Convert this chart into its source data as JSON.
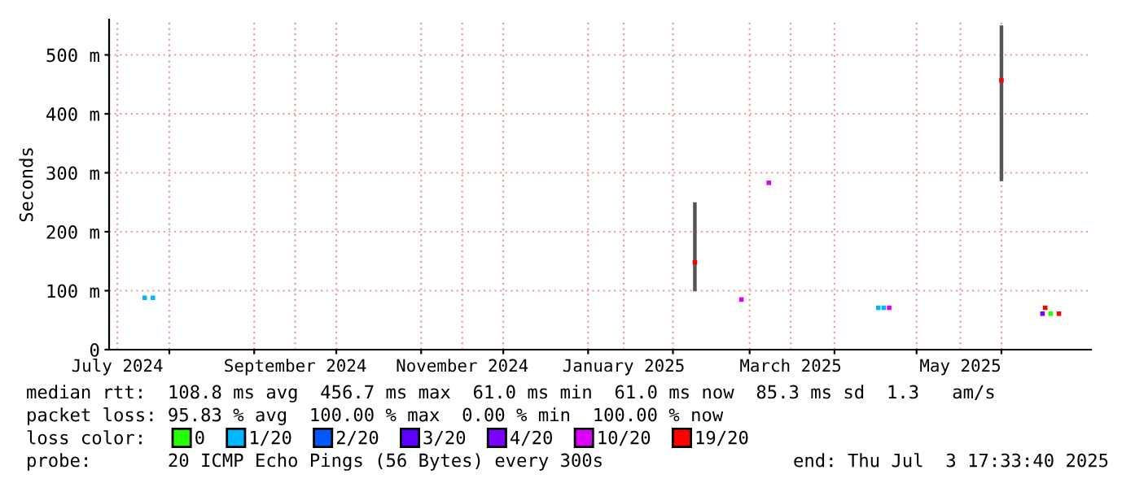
{
  "chart_data": {
    "type": "scatter",
    "ylabel": "Seconds",
    "xlim": [
      "2024-07-10",
      "2025-07-03T17:33"
    ],
    "xticks": [
      {
        "value": "2024-08-01",
        "label": null
      },
      {
        "value": "2024-09-01",
        "label": null
      },
      {
        "value": "2024-10-01",
        "label": null
      },
      {
        "value": "2024-11-01",
        "label": null
      },
      {
        "value": "2024-12-01",
        "label": null
      },
      {
        "value": "2025-01-01",
        "label": null
      },
      {
        "value": "2025-02-01",
        "label": null
      },
      {
        "value": "2025-03-01",
        "label": null
      },
      {
        "value": "2025-04-01",
        "label": null
      },
      {
        "value": "2025-05-01",
        "label": null
      },
      {
        "value": "2025-06-01",
        "label": null
      },
      {
        "value": "2024-07-13",
        "label": "July 2024"
      },
      {
        "value": "2024-09-16",
        "label": "September 2024"
      },
      {
        "value": "2024-11-16",
        "label": "November 2024"
      },
      {
        "value": "2025-01-14",
        "label": "January 2025"
      },
      {
        "value": "2025-03-16",
        "label": "March 2025"
      },
      {
        "value": "2025-05-17",
        "label": "May 2025"
      }
    ],
    "ylim": [
      0,
      560
    ],
    "yticks": [
      0,
      {
        "value": 100,
        "label": "100 m"
      },
      {
        "value": 200,
        "label": "200 m"
      },
      {
        "value": 300,
        "label": "300 m"
      },
      {
        "value": 400,
        "label": "400 m"
      },
      {
        "value": 500,
        "label": "500 m"
      }
    ],
    "grid": true,
    "marker": "square",
    "legend": "bottom",
    "legend_title": "loss color:",
    "series": [
      {
        "name": "0",
        "color": "#26ff00",
        "x": [
          "2025-06-19"
        ],
        "values": [
          61
        ]
      },
      {
        "name": "1/20",
        "color": "#00b8ff",
        "x": [
          "2024-07-23",
          "2024-07-26",
          "2025-04-17",
          "2025-04-19"
        ],
        "values": [
          88,
          88,
          71,
          71
        ]
      },
      {
        "name": "2/20",
        "color": "#0059ff"
      },
      {
        "name": "3/20",
        "color": "#5e00ff"
      },
      {
        "name": "4/20",
        "color": "#7e00ff",
        "x": [
          "2025-06-16"
        ],
        "values": [
          61
        ]
      },
      {
        "name": "10/20",
        "color": "#dd00ff",
        "x": [
          "2025-02-26",
          "2025-03-08",
          "2025-04-21"
        ],
        "values": [
          85,
          283,
          71
        ]
      },
      {
        "name": "19/20",
        "color": "#ff0000",
        "x": [
          "2025-02-09",
          "2025-06-01",
          "2025-06-17",
          "2025-06-22"
        ],
        "values": [
          148,
          457,
          71,
          61
        ],
        "errors": [
          [
            99,
            250
          ],
          [
            286,
            550
          ],
          null,
          null
        ]
      }
    ],
    "annotations": [
      "median rtt:  108.8 ms avg  456.7 ms max  61.0 ms min  61.0 ms now  85.3 ms sd  1.3   am/s",
      "packet loss: 95.83 % avg  100.00 % max  0.00 % min  100.00 % now",
      "probe:       20 ICMP Echo Pings (56 Bytes) every 300s",
      "end: Thu Jul  3 17:33:40 2025"
    ]
  }
}
